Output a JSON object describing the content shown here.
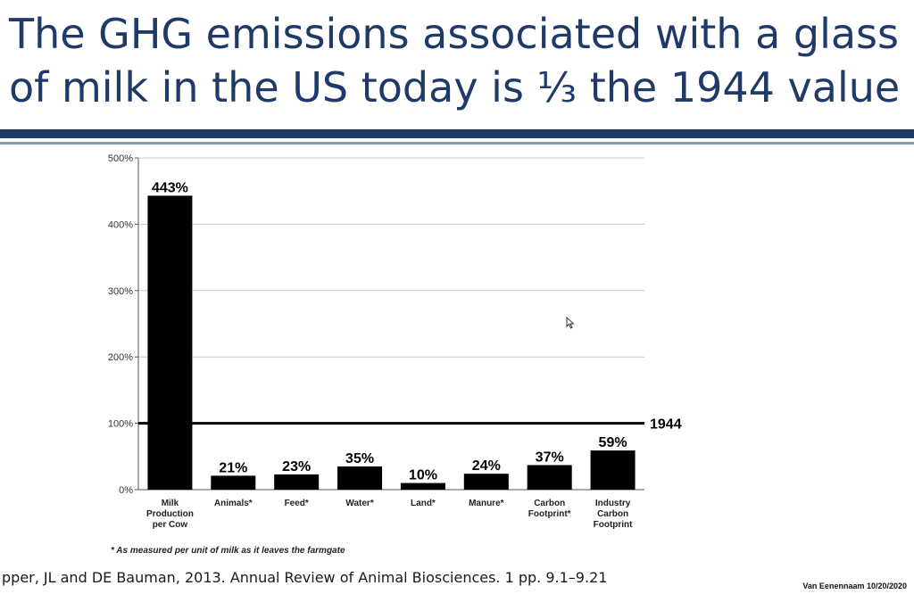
{
  "slide": {
    "title": "The GHG emissions associated with a glass of milk in the US today is ⅓ the 1944 value",
    "footnote": "* As measured per unit of milk as it leaves the farmgate",
    "citation": "pper, JL  and DE Bauman, 2013. Annual Review of Animal Biosciences. 1 pp. 9.1–9.21",
    "author_date": "Van Eenennaam 10/20/2020",
    "colors": {
      "title": "#1f3a68",
      "rule": "#1f3a68",
      "bars": "#000000",
      "grid": "#c8c8c8"
    },
    "cursor_icon": "mouse-pointer-icon"
  },
  "chart_data": {
    "type": "bar",
    "categories": [
      [
        "Milk",
        "Production",
        "per Cow"
      ],
      [
        "Animals*"
      ],
      [
        "Feed*"
      ],
      [
        "Water*"
      ],
      [
        "Land*"
      ],
      [
        "Manure*"
      ],
      [
        "Carbon",
        "Footprint*"
      ],
      [
        "Industry",
        "Carbon",
        "Footprint"
      ]
    ],
    "values": [
      443,
      21,
      23,
      35,
      10,
      24,
      37,
      59
    ],
    "data_labels": [
      "443%",
      "21%",
      "23%",
      "35%",
      "10%",
      "24%",
      "37%",
      "59%"
    ],
    "yticks": [
      "0%",
      "100%",
      "200%",
      "300%",
      "400%",
      "500%"
    ],
    "ytick_values": [
      0,
      100,
      200,
      300,
      400,
      500
    ],
    "ylim": [
      0,
      500
    ],
    "reference_line": {
      "value": 100,
      "label": "1944"
    },
    "grid": true,
    "xlabel": "",
    "ylabel": ""
  }
}
